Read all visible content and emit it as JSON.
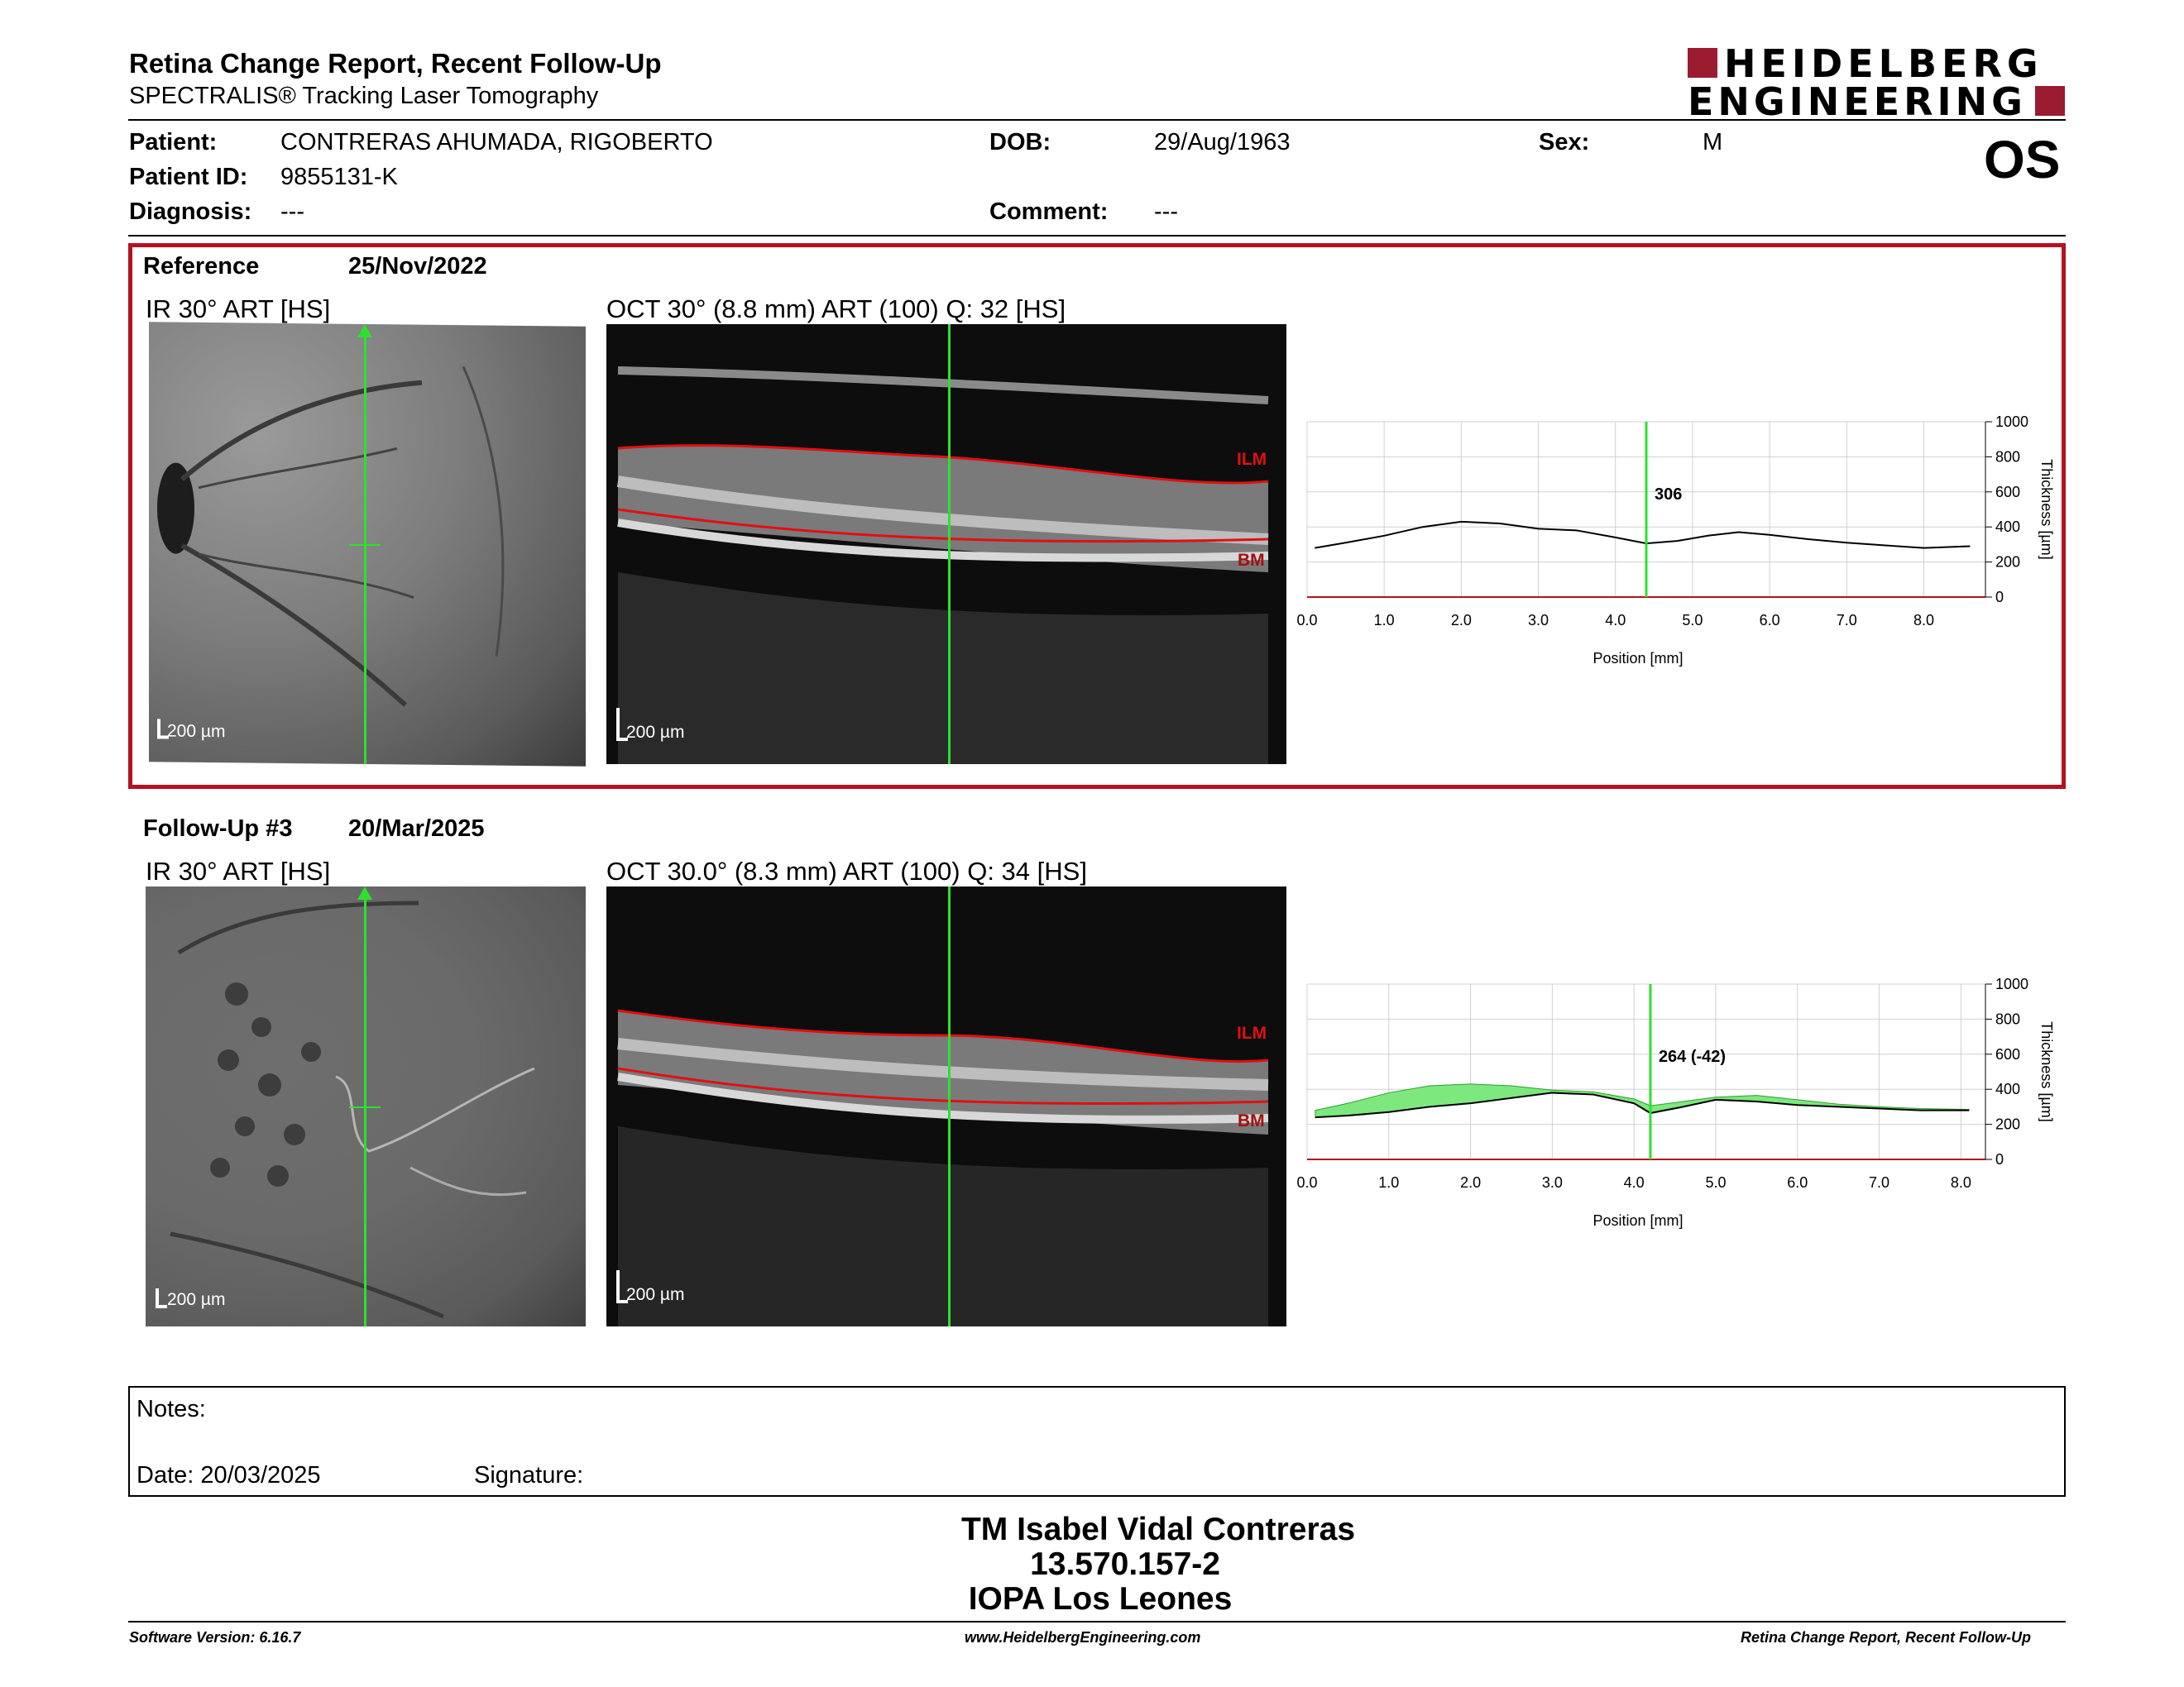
{
  "header": {
    "title": "Retina Change Report, Recent Follow-Up",
    "subtitle": "SPECTRALIS® Tracking Laser Tomography",
    "logo_line1": "HEIDELBERG",
    "logo_line2": "ENGINEERING",
    "eye": "OS"
  },
  "patient": {
    "patient_label": "Patient:",
    "patient_value": "CONTRERAS AHUMADA, RIGOBERTO",
    "dob_label": "DOB:",
    "dob_value": "29/Aug/1963",
    "sex_label": "Sex:",
    "sex_value": "M",
    "id_label": "Patient ID:",
    "id_value": "9855131-K",
    "diagnosis_label": "Diagnosis:",
    "diagnosis_value": "---",
    "comment_label": "Comment:",
    "comment_value": "---"
  },
  "reference": {
    "label": "Reference",
    "date": "25/Nov/2022",
    "ir_caption": "IR 30° ART [HS]",
    "oct_caption": "OCT 30° (8.8 mm) ART (100) Q: 32 [HS]",
    "scale_ir": "200 µm",
    "scale_oct": "200 µm",
    "ilm": "ILM",
    "bm": "BM"
  },
  "followup": {
    "label": "Follow-Up #3",
    "date": "20/Mar/2025",
    "ir_caption": "IR 30° ART [HS]",
    "oct_caption": "OCT 30.0° (8.3 mm) ART (100) Q: 34 [HS]",
    "scale_ir": "200 µm",
    "scale_oct": "200 µm",
    "ilm": "ILM",
    "bm": "BM"
  },
  "chart_data": [
    {
      "type": "line",
      "xlabel": "Position [mm]",
      "ylabel": "Thickness [µm]",
      "xlim": [
        0,
        8.8
      ],
      "ylim": [
        0,
        1000
      ],
      "x_ticks": [
        "0.0",
        "1.0",
        "2.0",
        "3.0",
        "4.0",
        "5.0",
        "6.0",
        "7.0",
        "8.0"
      ],
      "y_ticks": [
        "0",
        "200",
        "400",
        "600",
        "800",
        "1000"
      ],
      "cursor_x": 4.4,
      "cursor_label": "306",
      "grid": true,
      "series": [
        {
          "x": [
            0.1,
            0.5,
            1.0,
            1.5,
            2.0,
            2.5,
            3.0,
            3.5,
            4.0,
            4.4,
            4.8,
            5.2,
            5.6,
            6.0,
            6.5,
            7.0,
            7.5,
            8.0,
            8.6
          ],
          "values": [
            280,
            310,
            350,
            400,
            430,
            420,
            390,
            380,
            340,
            306,
            320,
            350,
            370,
            355,
            330,
            310,
            295,
            280,
            290
          ]
        }
      ]
    },
    {
      "type": "area",
      "xlabel": "Position [mm]",
      "ylabel": "Thickness [µm]",
      "xlim": [
        0,
        8.3
      ],
      "ylim": [
        0,
        1000
      ],
      "x_ticks": [
        "0.0",
        "1.0",
        "2.0",
        "3.0",
        "4.0",
        "5.0",
        "6.0",
        "7.0",
        "8.0"
      ],
      "y_ticks": [
        "0",
        "200",
        "400",
        "600",
        "800",
        "1000"
      ],
      "cursor_x": 4.2,
      "cursor_label": "264 (-42)",
      "grid": true,
      "series": [
        {
          "x": [
            0.1,
            0.5,
            1.0,
            1.5,
            2.0,
            2.5,
            3.0,
            3.5,
            4.0,
            4.2,
            4.6,
            5.0,
            5.5,
            6.0,
            6.5,
            7.0,
            7.5,
            8.1
          ],
          "values": [
            240,
            250,
            270,
            300,
            320,
            350,
            380,
            370,
            320,
            264,
            300,
            340,
            330,
            310,
            300,
            290,
            280,
            280
          ]
        },
        {
          "x": [
            0.1,
            0.5,
            1.0,
            1.5,
            2.0,
            2.5,
            3.0,
            3.5,
            4.0,
            4.2,
            4.6,
            5.0,
            5.5,
            6.0,
            6.5,
            7.0,
            7.5,
            8.1
          ],
          "values": [
            280,
            320,
            380,
            420,
            430,
            420,
            395,
            385,
            345,
            306,
            330,
            355,
            365,
            340,
            315,
            300,
            290,
            285
          ]
        }
      ]
    }
  ],
  "notes": {
    "notes_label": "Notes:",
    "date_label": "Date: 20/03/2025",
    "signature_label": "Signature:"
  },
  "signature": {
    "line1": "TM Isabel Vidal Contreras",
    "line2": "13.570.157-2",
    "line3": "IOPA Los Leones"
  },
  "footer": {
    "left": "Software Version: 6.16.7",
    "center": "www.HeidelbergEngineering.com",
    "right": "Retina Change Report, Recent Follow-Up"
  },
  "colors": {
    "frame": "#b3121e",
    "logo": "#9b1b30",
    "cursor": "#2ee02e",
    "layer": "#e01010",
    "fill": "#7de87d"
  }
}
